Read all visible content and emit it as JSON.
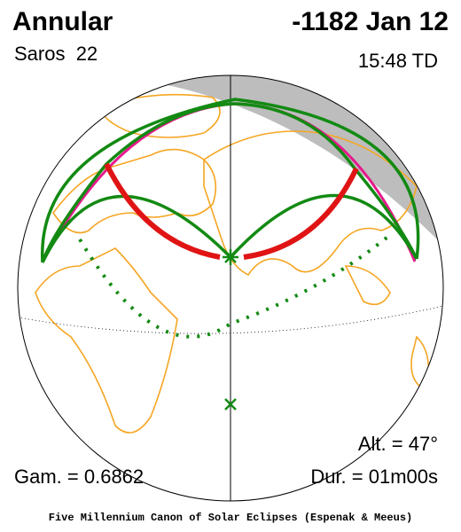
{
  "header": {
    "title": "Annular",
    "date": "-1182 Jan 12",
    "saros": "Saros  22",
    "time": "15:48 TD"
  },
  "stats": {
    "altitude": "Alt. = 47°",
    "gamma": "Gam. = 0.6862",
    "duration": "Dur. = 01m00s"
  },
  "footer": "Five Millennium Canon of Solar Eclipses (Espenak & Meeus)"
}
